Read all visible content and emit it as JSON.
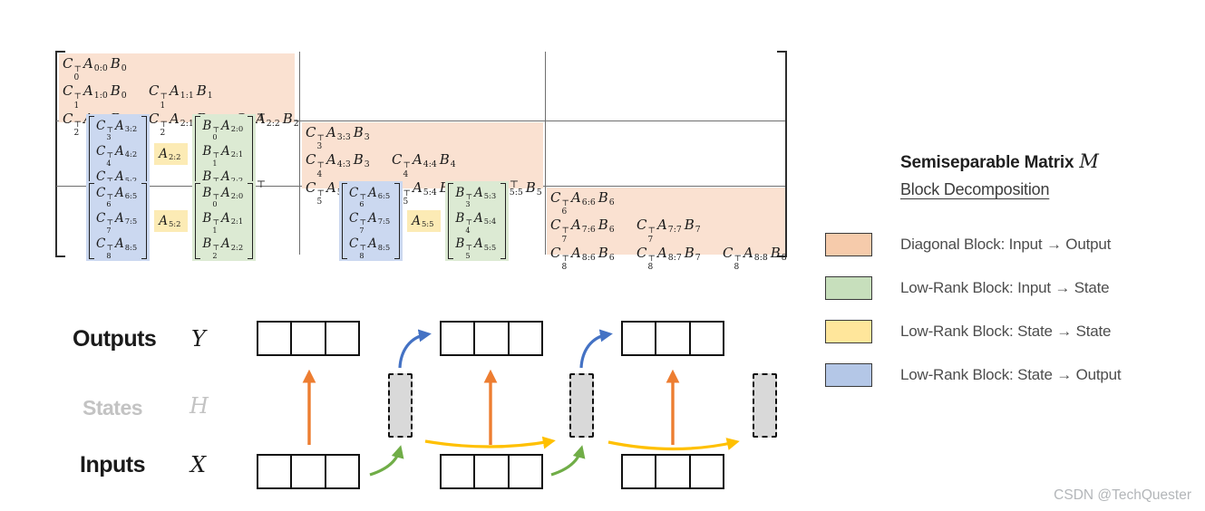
{
  "colors": {
    "diag_block": "#FAE1D1",
    "input_state_block": "#DCEAD3",
    "state_state_block": "#FCEBB5",
    "state_output_block": "#CBD8F0",
    "state_fill": "#D9D9D9",
    "arrow_orange": "#ED7D31",
    "arrow_green": "#70AD47",
    "arrow_blue": "#4472C4",
    "arrow_yellow": "#FFC000"
  },
  "matrix": {
    "term_letters": {
      "c": "C",
      "a": "A",
      "b": "B",
      "transpose": "⊤"
    },
    "diagonal_blocks": [
      {
        "rows": [
          [
            {
              "c": "0",
              "a": "0:0",
              "b": "0"
            }
          ],
          [
            {
              "c": "1",
              "a": "1:0",
              "b": "0"
            },
            {
              "c": "1",
              "a": "1:1",
              "b": "1"
            }
          ],
          [
            {
              "c": "2",
              "a": "2:0",
              "b": "0"
            },
            {
              "c": "2",
              "a": "2:1",
              "b": "1"
            },
            {
              "c": "2",
              "a": "2:2",
              "b": "2"
            }
          ]
        ]
      },
      {
        "rows": [
          [
            {
              "c": "3",
              "a": "3:3",
              "b": "3"
            }
          ],
          [
            {
              "c": "4",
              "a": "4:3",
              "b": "3"
            },
            {
              "c": "4",
              "a": "4:4",
              "b": "4"
            }
          ],
          [
            {
              "c": "5",
              "a": "5:3",
              "b": "3"
            },
            {
              "c": "5",
              "a": "5:4",
              "b": "4"
            },
            {
              "c": "5",
              "a": "5:5",
              "b": "5"
            }
          ]
        ]
      },
      {
        "rows": [
          [
            {
              "c": "6",
              "a": "6:6",
              "b": "6"
            }
          ],
          [
            {
              "c": "7",
              "a": "7:6",
              "b": "6"
            },
            {
              "c": "7",
              "a": "7:7",
              "b": "7"
            }
          ],
          [
            {
              "c": "8",
              "a": "8:6",
              "b": "6"
            },
            {
              "c": "8",
              "a": "8:7",
              "b": "7"
            },
            {
              "c": "8",
              "a": "8:8",
              "b": "8"
            }
          ]
        ]
      }
    ],
    "low_rank_groups": [
      {
        "state_to_output": [
          {
            "c": "3",
            "a": "3:2"
          },
          {
            "c": "4",
            "a": "4:2"
          },
          {
            "c": "5",
            "a": "5:2"
          }
        ],
        "state_to_state": {
          "a": "2:2"
        },
        "input_to_state": [
          {
            "b": "0",
            "a": "2:0"
          },
          {
            "b": "1",
            "a": "2:1"
          },
          {
            "b": "2",
            "a": "2:2"
          }
        ]
      },
      {
        "state_to_output": [
          {
            "c": "6",
            "a": "6:5"
          },
          {
            "c": "7",
            "a": "7:5"
          },
          {
            "c": "8",
            "a": "8:5"
          }
        ],
        "state_to_state": {
          "a": "5:2"
        },
        "input_to_state": [
          {
            "b": "0",
            "a": "2:0"
          },
          {
            "b": "1",
            "a": "2:1"
          },
          {
            "b": "2",
            "a": "2:2"
          }
        ]
      },
      {
        "state_to_output": [
          {
            "c": "6",
            "a": "6:5"
          },
          {
            "c": "7",
            "a": "7:5"
          },
          {
            "c": "8",
            "a": "8:5"
          }
        ],
        "state_to_state": {
          "a": "5:5"
        },
        "input_to_state": [
          {
            "b": "3",
            "a": "5:3"
          },
          {
            "b": "4",
            "a": "5:4"
          },
          {
            "b": "5",
            "a": "5:5"
          }
        ]
      }
    ]
  },
  "legend": {
    "title": "Semiseparable Matrix",
    "title_symbol": "M",
    "subtitle": "Block Decomposition",
    "items": [
      {
        "color": "#F6CBAB",
        "label": "Diagonal Block: Input → Output"
      },
      {
        "color": "#C7DFBC",
        "label": "Low-Rank Block: Input → State"
      },
      {
        "color": "#FFE69B",
        "label": "Low-Rank Block: State → State"
      },
      {
        "color": "#B4C7E7",
        "label": "Low-Rank Block: State → Output"
      }
    ]
  },
  "sequence": {
    "rows": [
      {
        "label": "Outputs",
        "symbol": "Y"
      },
      {
        "label": "States",
        "symbol": "H"
      },
      {
        "label": "Inputs",
        "symbol": "X"
      }
    ]
  },
  "watermark": {
    "text": "CSDN @TechQuester"
  }
}
